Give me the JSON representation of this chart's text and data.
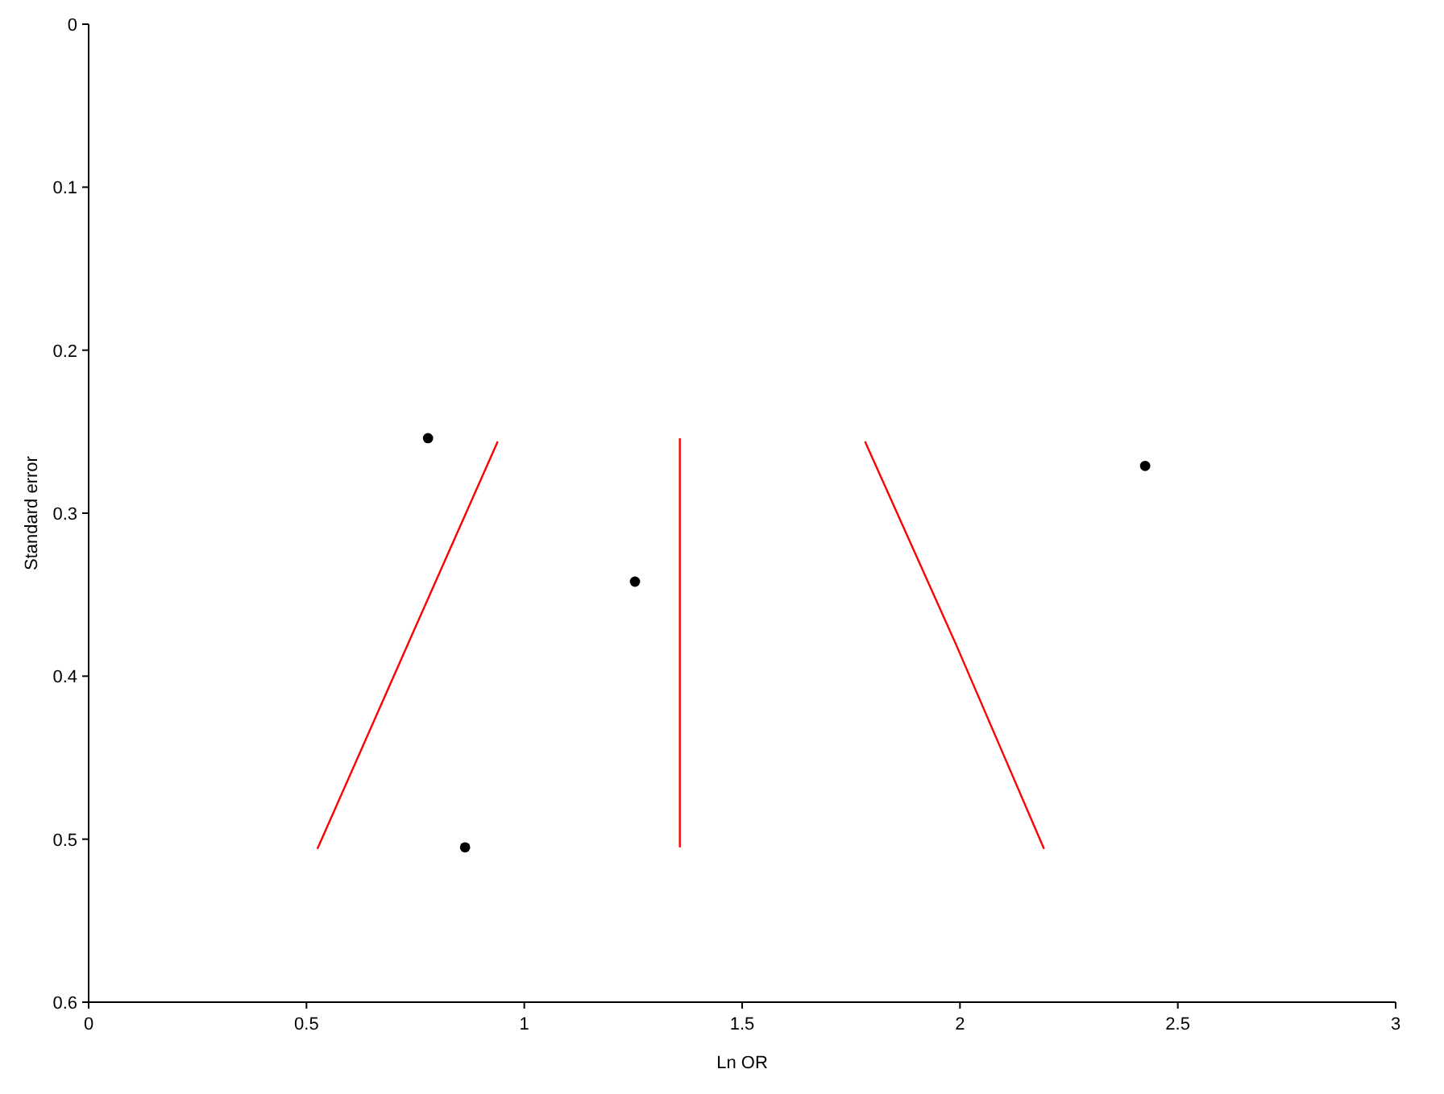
{
  "chart_data": {
    "type": "scatter",
    "xlabel": "Ln OR",
    "ylabel": "Standard error",
    "xlim": [
      0,
      3
    ],
    "ylim": [
      0.6,
      0
    ],
    "xticks": [
      0,
      0.5,
      1,
      1.5,
      2,
      2.5,
      3
    ],
    "yticks": [
      0,
      0.1,
      0.2,
      0.3,
      0.4,
      0.5,
      0.6
    ],
    "grid": false,
    "series": [
      {
        "color": "#000000",
        "marker": "circle",
        "x": [
          0.779,
          0.864,
          1.254,
          2.425
        ],
        "values": [
          0.254,
          0.505,
          0.342,
          0.271
        ]
      },
      {
        "type": "line",
        "color": "#ff0000",
        "line_style": "solid",
        "marker": "none",
        "x": [
          0.525,
          0.74,
          0.939
        ],
        "values": [
          0.506,
          0.376,
          0.256
        ]
      },
      {
        "type": "line",
        "color": "#ff0000",
        "line_style": "solid",
        "marker": "none",
        "x": [
          1.357,
          1.357
        ],
        "values": [
          0.505,
          0.254
        ]
      },
      {
        "type": "line",
        "color": "#ff0000",
        "line_style": "solid",
        "marker": "none",
        "x": [
          1.782,
          1.99,
          2.193
        ],
        "values": [
          0.256,
          0.38,
          0.506
        ]
      }
    ]
  }
}
